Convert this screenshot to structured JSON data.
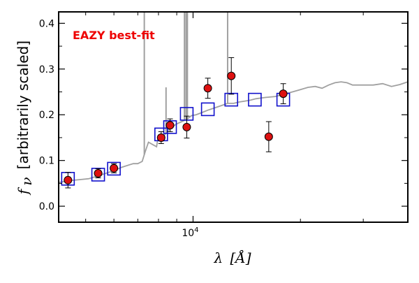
{
  "chart_data": {
    "type": "scatter",
    "annotation": "EAZY best-fit",
    "annotation_color": "#ee0000",
    "xlabel_symbol": "λ",
    "xlabel_unit": "[Å]",
    "ylabel_symbol": "f",
    "ylabel_subscript": "ν",
    "ylabel_text": "[arbitrarily scaled]",
    "x_scale": "log",
    "xlim": [
      4200,
      40000
    ],
    "ylim": [
      -0.035,
      0.425
    ],
    "x_ticks": [
      {
        "value": 10000,
        "base": "10",
        "exp": "4"
      }
    ],
    "x_minor_ticks": [
      5000,
      6000,
      7000,
      8000,
      9000,
      20000,
      30000
    ],
    "y_ticks": [
      0.0,
      0.1,
      0.2,
      0.3,
      0.4
    ],
    "y_tick_labels": [
      "0.0",
      "0.1",
      "0.2",
      "0.3",
      "0.4"
    ],
    "y_minor_ticks": [
      0.05,
      0.15,
      0.25,
      0.35
    ],
    "colors": {
      "template": "#a0a0a0",
      "model": "#1111cc",
      "observed_face": "#dd1111",
      "observed_edge": "#000000"
    },
    "series": [
      {
        "name": "observed photometry",
        "marker": "circle",
        "points": [
          {
            "x": 4460,
            "y": 0.057,
            "err": 0.017
          },
          {
            "x": 5420,
            "y": 0.072,
            "err": 0.01
          },
          {
            "x": 6000,
            "y": 0.083,
            "err": 0.01
          },
          {
            "x": 8140,
            "y": 0.15,
            "err": 0.013
          },
          {
            "x": 8620,
            "y": 0.177,
            "err": 0.014
          },
          {
            "x": 9600,
            "y": 0.173,
            "err": 0.024
          },
          {
            "x": 11000,
            "y": 0.258,
            "err": 0.022
          },
          {
            "x": 12800,
            "y": 0.285,
            "err": 0.04
          },
          {
            "x": 16300,
            "y": 0.152,
            "err": 0.033
          },
          {
            "x": 17900,
            "y": 0.246,
            "err": 0.022
          }
        ]
      },
      {
        "name": "model fluxes",
        "marker": "square",
        "points": [
          {
            "x": 4460,
            "y": 0.06
          },
          {
            "x": 5420,
            "y": 0.069
          },
          {
            "x": 6000,
            "y": 0.082
          },
          {
            "x": 8140,
            "y": 0.157
          },
          {
            "x": 8620,
            "y": 0.173
          },
          {
            "x": 9600,
            "y": 0.202
          },
          {
            "x": 11000,
            "y": 0.212
          },
          {
            "x": 12800,
            "y": 0.233
          },
          {
            "x": 14900,
            "y": 0.233
          },
          {
            "x": 17900,
            "y": 0.233
          }
        ]
      },
      {
        "name": "best-fit template",
        "line": "solid",
        "x": [
          4200,
          4500,
          4800,
          5100,
          5400,
          5700,
          6000,
          6300,
          6600,
          6800,
          7000,
          7200,
          7350,
          7500,
          7700,
          7900,
          8000,
          8200,
          8400,
          8600,
          8800,
          9000,
          9300,
          9600,
          9900,
          10200,
          10600,
          11000,
          11500,
          12000,
          12500,
          13000,
          13500,
          14000,
          14500,
          15000,
          16000,
          17000,
          18000,
          19000,
          20000,
          21000,
          22000,
          23000,
          24000,
          25000,
          26000,
          27000,
          28000,
          30000,
          32000,
          34000,
          36000,
          38000,
          40000
        ],
        "y": [
          0.052,
          0.056,
          0.058,
          0.06,
          0.066,
          0.072,
          0.078,
          0.085,
          0.09,
          0.093,
          0.093,
          0.098,
          0.12,
          0.14,
          0.135,
          0.13,
          0.155,
          0.15,
          0.16,
          0.17,
          0.175,
          0.18,
          0.185,
          0.19,
          0.198,
          0.2,
          0.205,
          0.21,
          0.215,
          0.22,
          0.225,
          0.225,
          0.228,
          0.23,
          0.232,
          0.235,
          0.238,
          0.24,
          0.245,
          0.25,
          0.255,
          0.26,
          0.262,
          0.258,
          0.265,
          0.27,
          0.272,
          0.27,
          0.265,
          0.265,
          0.265,
          0.268,
          0.262,
          0.266,
          0.272
        ]
      },
      {
        "name": "template emission lines",
        "lines": [
          {
            "x": 7300,
            "top": 0.44
          },
          {
            "x": 8400,
            "top": 0.26
          },
          {
            "x": 9460,
            "top": 0.44
          },
          {
            "x": 9560,
            "top": 0.44
          },
          {
            "x": 9640,
            "top": 0.44
          },
          {
            "x": 12500,
            "top": 0.44
          }
        ]
      }
    ]
  }
}
